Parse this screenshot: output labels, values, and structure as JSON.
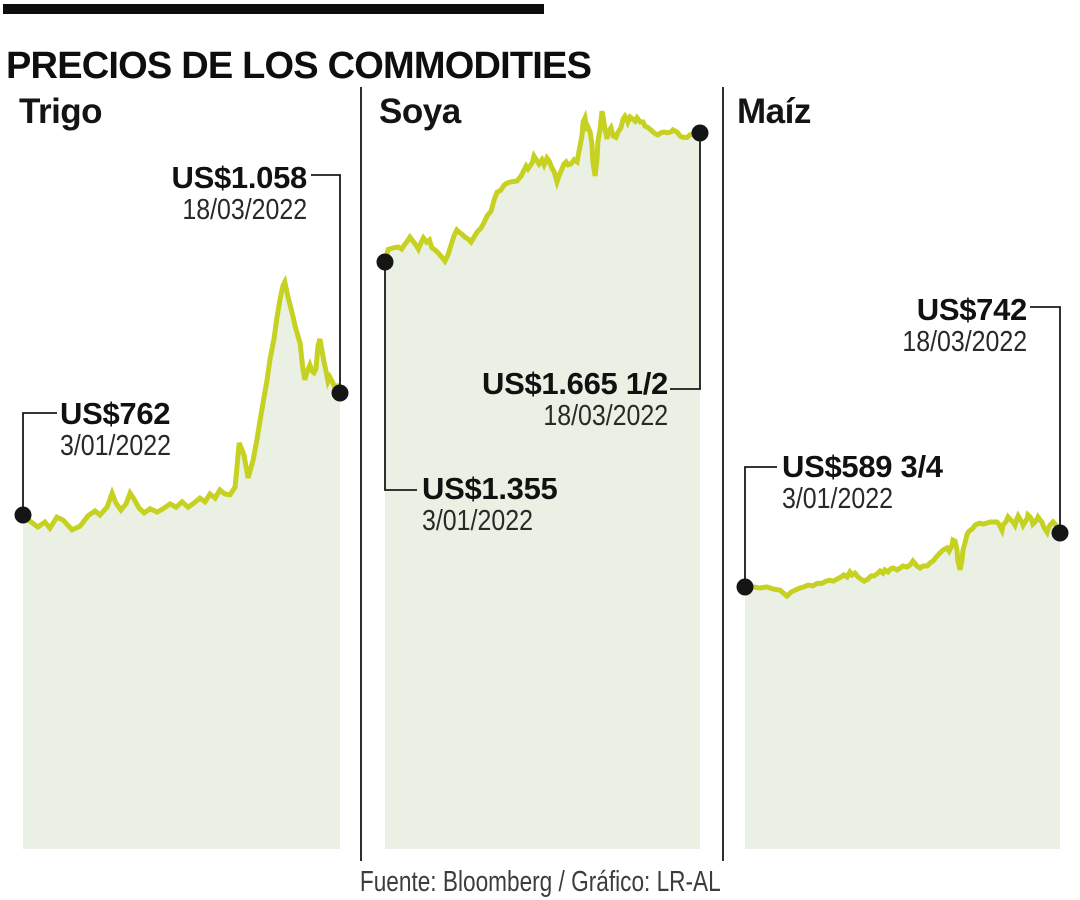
{
  "header": {
    "title": "PRECIOS DE LOS COMMODITIES"
  },
  "footer": {
    "source": "Fuente: Bloomberg / Gráfico: LR-AL"
  },
  "colors": {
    "series_line": "#c6d122",
    "area_fill": "#eaf1e4",
    "marker_dot": "#151515",
    "callout_line": "#1a1a1a",
    "top_bar": "#0d0d0d"
  },
  "chart_data": [
    {
      "type": "area",
      "title": "Trigo",
      "x_range": [
        "3/01/2022",
        "18/03/2022"
      ],
      "start": {
        "label": "US$762",
        "date": "3/01/2022",
        "value": 762
      },
      "end": {
        "label": "US$1.058",
        "date": "18/03/2022",
        "value": 1058
      },
      "series": [
        [
          0,
          762
        ],
        [
          2.2,
          747
        ],
        [
          4.7,
          733
        ],
        [
          6.9,
          745
        ],
        [
          8.5,
          730
        ],
        [
          10.7,
          757
        ],
        [
          12.6,
          750
        ],
        [
          15.5,
          726
        ],
        [
          18,
          735
        ],
        [
          20.5,
          760
        ],
        [
          22.7,
          772
        ],
        [
          24.3,
          762
        ],
        [
          26.5,
          781
        ],
        [
          28.1,
          815
        ],
        [
          29.3,
          791
        ],
        [
          30.9,
          774
        ],
        [
          32.5,
          789
        ],
        [
          33.8,
          815
        ],
        [
          35,
          801
        ],
        [
          36.6,
          779
        ],
        [
          38.2,
          767
        ],
        [
          40.1,
          777
        ],
        [
          42.3,
          769
        ],
        [
          44.2,
          777
        ],
        [
          46.4,
          789
        ],
        [
          48.3,
          781
        ],
        [
          50.2,
          794
        ],
        [
          52.1,
          781
        ],
        [
          53.9,
          791
        ],
        [
          55.8,
          803
        ],
        [
          57.4,
          794
        ],
        [
          59,
          813
        ],
        [
          60.6,
          803
        ],
        [
          62.1,
          823
        ],
        [
          63.7,
          813
        ],
        [
          65.3,
          811
        ],
        [
          66.9,
          830
        ],
        [
          68.2,
          937
        ],
        [
          69.7,
          908
        ],
        [
          71,
          852
        ],
        [
          72.6,
          895
        ],
        [
          73.8,
          944
        ],
        [
          74.8,
          992
        ],
        [
          76,
          1046
        ],
        [
          77,
          1090
        ],
        [
          77.9,
          1138
        ],
        [
          79.2,
          1191
        ],
        [
          80.1,
          1240
        ],
        [
          81.1,
          1286
        ],
        [
          82,
          1318
        ],
        [
          82.6,
          1327
        ],
        [
          83.6,
          1291
        ],
        [
          84.5,
          1264
        ],
        [
          85.2,
          1242
        ],
        [
          85.8,
          1221
        ],
        [
          86.8,
          1194
        ],
        [
          87.4,
          1179
        ],
        [
          88.3,
          1116
        ],
        [
          88.9,
          1090
        ],
        [
          89.6,
          1109
        ],
        [
          90.5,
          1126
        ],
        [
          91.2,
          1111
        ],
        [
          91.8,
          1107
        ],
        [
          92.4,
          1116
        ],
        [
          93.1,
          1174
        ],
        [
          93.7,
          1189
        ],
        [
          94.3,
          1162
        ],
        [
          94.9,
          1136
        ],
        [
          95.6,
          1111
        ],
        [
          96.2,
          1086
        ],
        [
          96.8,
          1096
        ],
        [
          97.8,
          1082
        ],
        [
          98.4,
          1070
        ],
        [
          99.1,
          1074
        ],
        [
          100,
          1058
        ]
      ]
    },
    {
      "type": "area",
      "title": "Soya",
      "x_range": [
        "3/01/2022",
        "18/03/2022"
      ],
      "start": {
        "label": "US$1.355",
        "date": "3/01/2022",
        "value": 1355
      },
      "end": {
        "label": "US$1.665 1/2",
        "date": "18/03/2022",
        "value": 1665.5
      },
      "series": [
        [
          0,
          1355
        ],
        [
          1,
          1385
        ],
        [
          2.6,
          1389
        ],
        [
          4.2,
          1391
        ],
        [
          5.3,
          1386
        ],
        [
          6.1,
          1396
        ],
        [
          6.9,
          1403
        ],
        [
          7.9,
          1415
        ],
        [
          8.8,
          1406
        ],
        [
          9.8,
          1396
        ],
        [
          10.6,
          1386
        ],
        [
          11.4,
          1401
        ],
        [
          12.2,
          1413
        ],
        [
          13.2,
          1403
        ],
        [
          14.1,
          1408
        ],
        [
          14.9,
          1389
        ],
        [
          15.9,
          1384
        ],
        [
          16.9,
          1377
        ],
        [
          18,
          1367
        ],
        [
          19,
          1357
        ],
        [
          20,
          1372
        ],
        [
          20.9,
          1394
        ],
        [
          21.9,
          1418
        ],
        [
          22.8,
          1432
        ],
        [
          23.5,
          1427
        ],
        [
          24.4,
          1422
        ],
        [
          25.4,
          1415
        ],
        [
          26.4,
          1410
        ],
        [
          27.3,
          1403
        ],
        [
          28.3,
          1415
        ],
        [
          29.2,
          1427
        ],
        [
          30.5,
          1437
        ],
        [
          31.4,
          1449
        ],
        [
          32.4,
          1466
        ],
        [
          33.7,
          1478
        ],
        [
          34.6,
          1504
        ],
        [
          35.6,
          1523
        ],
        [
          36.8,
          1528
        ],
        [
          37.8,
          1540
        ],
        [
          38.7,
          1545
        ],
        [
          40,
          1548
        ],
        [
          41.9,
          1550
        ],
        [
          43.2,
          1562
        ],
        [
          44.1,
          1576
        ],
        [
          44.8,
          1586
        ],
        [
          45.4,
          1579
        ],
        [
          46.7,
          1593
        ],
        [
          47.3,
          1610
        ],
        [
          48.3,
          1598
        ],
        [
          48.9,
          1591
        ],
        [
          49.8,
          1601
        ],
        [
          50.5,
          1589
        ],
        [
          51.4,
          1605
        ],
        [
          52.1,
          1598
        ],
        [
          53,
          1581
        ],
        [
          53.7,
          1572
        ],
        [
          54.6,
          1548
        ],
        [
          55.2,
          1562
        ],
        [
          56.2,
          1579
        ],
        [
          56.8,
          1591
        ],
        [
          57.5,
          1596
        ],
        [
          58.1,
          1589
        ],
        [
          59,
          1591
        ],
        [
          60,
          1601
        ],
        [
          61,
          1596
        ],
        [
          61.3,
          1610
        ],
        [
          61.9,
          1634
        ],
        [
          62.5,
          1658
        ],
        [
          62.9,
          1692
        ],
        [
          63.5,
          1702
        ],
        [
          64.1,
          1678
        ],
        [
          64.4,
          1680
        ],
        [
          65.1,
          1668
        ],
        [
          65.7,
          1637
        ],
        [
          66,
          1596
        ],
        [
          66.7,
          1562
        ],
        [
          67.3,
          1603
        ],
        [
          67.6,
          1644
        ],
        [
          68.3,
          1675
        ],
        [
          68.9,
          1718
        ],
        [
          69.2,
          1706
        ],
        [
          69.8,
          1675
        ],
        [
          70.5,
          1651
        ],
        [
          70.8,
          1668
        ],
        [
          71.7,
          1678
        ],
        [
          72.4,
          1658
        ],
        [
          73.3,
          1655
        ],
        [
          74,
          1668
        ],
        [
          74.9,
          1678
        ],
        [
          75.6,
          1699
        ],
        [
          76.2,
          1706
        ],
        [
          76.8,
          1699
        ],
        [
          77.1,
          1692
        ],
        [
          77.8,
          1704
        ],
        [
          78.7,
          1699
        ],
        [
          79.4,
          1694
        ],
        [
          80,
          1702
        ],
        [
          81,
          1692
        ],
        [
          81.9,
          1692
        ],
        [
          82.5,
          1682
        ],
        [
          83.2,
          1680
        ],
        [
          84.1,
          1675
        ],
        [
          85.1,
          1668
        ],
        [
          86,
          1663
        ],
        [
          86.7,
          1661
        ],
        [
          87.6,
          1666
        ],
        [
          88.6,
          1668
        ],
        [
          89.6,
          1666
        ],
        [
          90.8,
          1668
        ],
        [
          91.4,
          1673
        ],
        [
          92.7,
          1668
        ],
        [
          93.7,
          1658
        ],
        [
          94.6,
          1655
        ],
        [
          95.9,
          1655
        ],
        [
          96.8,
          1661
        ],
        [
          97.8,
          1663
        ],
        [
          99,
          1666
        ],
        [
          100,
          1665.5
        ]
      ]
    },
    {
      "type": "area",
      "title": "Maíz",
      "x_range": [
        "3/01/2022",
        "18/03/2022"
      ],
      "start": {
        "label": "US$589 3/4",
        "date": "3/01/2022",
        "value": 589.75
      },
      "end": {
        "label": "US$742",
        "date": "18/03/2022",
        "value": 742
      },
      "series": [
        [
          0,
          589.75
        ],
        [
          0.6,
          593
        ],
        [
          2.5,
          590
        ],
        [
          4.8,
          587
        ],
        [
          7,
          590
        ],
        [
          8.9,
          584
        ],
        [
          11.1,
          581
        ],
        [
          13.3,
          564
        ],
        [
          14.6,
          575
        ],
        [
          15.9,
          581
        ],
        [
          17.5,
          587
        ],
        [
          18.7,
          590
        ],
        [
          20,
          595
        ],
        [
          21.6,
          593
        ],
        [
          22.9,
          600
        ],
        [
          24.4,
          600
        ],
        [
          25.7,
          606
        ],
        [
          27,
          609
        ],
        [
          28,
          606
        ],
        [
          29.2,
          612
        ],
        [
          30.5,
          618
        ],
        [
          31.4,
          624
        ],
        [
          32.4,
          618
        ],
        [
          33.3,
          632
        ],
        [
          34,
          624
        ],
        [
          34.9,
          629
        ],
        [
          35.9,
          618
        ],
        [
          36.8,
          612
        ],
        [
          37.8,
          606
        ],
        [
          39,
          612
        ],
        [
          40,
          621
        ],
        [
          41,
          621
        ],
        [
          42.2,
          629
        ],
        [
          42.9,
          635
        ],
        [
          43.8,
          629
        ],
        [
          44.4,
          638
        ],
        [
          45.4,
          632
        ],
        [
          46.3,
          641
        ],
        [
          47,
          643
        ],
        [
          48.3,
          638
        ],
        [
          49.2,
          643
        ],
        [
          50.2,
          649
        ],
        [
          51.4,
          646
        ],
        [
          52.4,
          652
        ],
        [
          53.3,
          663
        ],
        [
          54.6,
          649
        ],
        [
          55.6,
          643
        ],
        [
          56.5,
          649
        ],
        [
          57.8,
          649
        ],
        [
          58.7,
          657
        ],
        [
          59.7,
          663
        ],
        [
          61,
          677
        ],
        [
          61.9,
          686
        ],
        [
          62.9,
          694
        ],
        [
          64.1,
          700
        ],
        [
          64.8,
          691
        ],
        [
          65.7,
          708
        ],
        [
          66,
          722
        ],
        [
          66.7,
          719
        ],
        [
          67.3,
          694
        ],
        [
          67.6,
          663
        ],
        [
          68.3,
          638
        ],
        [
          68.9,
          666
        ],
        [
          69.2,
          694
        ],
        [
          69.8,
          713
        ],
        [
          70.5,
          739
        ],
        [
          71.1,
          747
        ],
        [
          72.1,
          753
        ],
        [
          73,
          764
        ],
        [
          73.7,
          767
        ],
        [
          74.6,
          770
        ],
        [
          75.6,
          767
        ],
        [
          76.8,
          770
        ],
        [
          77.8,
          773
        ],
        [
          78.7,
          773
        ],
        [
          80,
          773
        ],
        [
          80.6,
          767
        ],
        [
          81.6,
          750
        ],
        [
          81.9,
          764
        ],
        [
          82.9,
          775
        ],
        [
          83.5,
          787
        ],
        [
          84.1,
          781
        ],
        [
          85.1,
          773
        ],
        [
          85.7,
          764
        ],
        [
          86.3,
          781
        ],
        [
          86.7,
          790
        ],
        [
          87.3,
          781
        ],
        [
          87.9,
          773
        ],
        [
          88.3,
          764
        ],
        [
          88.9,
          773
        ],
        [
          89.5,
          781
        ],
        [
          89.8,
          793
        ],
        [
          90.5,
          787
        ],
        [
          91.1,
          778
        ],
        [
          91.4,
          767
        ],
        [
          92.1,
          773
        ],
        [
          92.7,
          781
        ],
        [
          93,
          787
        ],
        [
          93.7,
          778
        ],
        [
          94.3,
          773
        ],
        [
          94.6,
          764
        ],
        [
          95.2,
          753
        ],
        [
          95.9,
          744
        ],
        [
          96.2,
          753
        ],
        [
          96.8,
          764
        ],
        [
          97.5,
          770
        ],
        [
          97.8,
          773
        ],
        [
          98.4,
          767
        ],
        [
          99,
          761
        ],
        [
          99.4,
          753
        ],
        [
          100,
          742
        ]
      ]
    }
  ]
}
